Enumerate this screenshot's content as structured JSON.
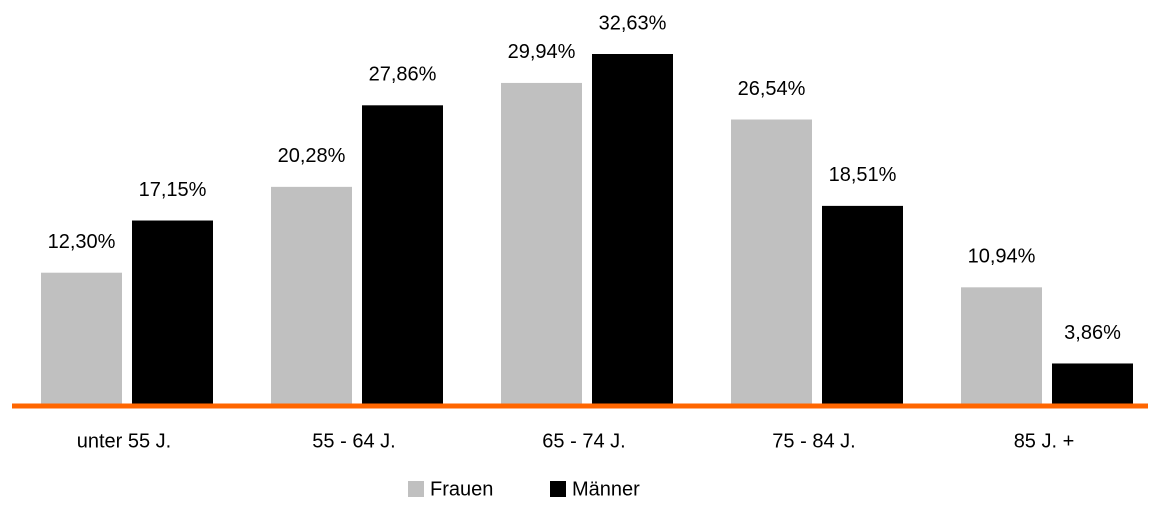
{
  "chart_data": {
    "type": "bar",
    "categories": [
      "unter 55 J.",
      "55 - 64 J.",
      "65 - 74 J.",
      "75 - 84 J.",
      "85 J. +"
    ],
    "series": [
      {
        "name": "Frauen",
        "color": "#c0c0c0",
        "values": [
          12.3,
          20.28,
          29.94,
          26.54,
          10.94
        ],
        "value_labels": [
          "12,30%",
          "20,28%",
          "29,94%",
          "26,54%",
          "10,94%"
        ]
      },
      {
        "name": "Männer",
        "color": "#000000",
        "values": [
          17.15,
          27.86,
          32.63,
          18.51,
          3.86
        ],
        "value_labels": [
          "17,15%",
          "27,86%",
          "32,63%",
          "18,51%",
          "3,86%"
        ]
      }
    ],
    "axis_color": "#ff6600"
  }
}
